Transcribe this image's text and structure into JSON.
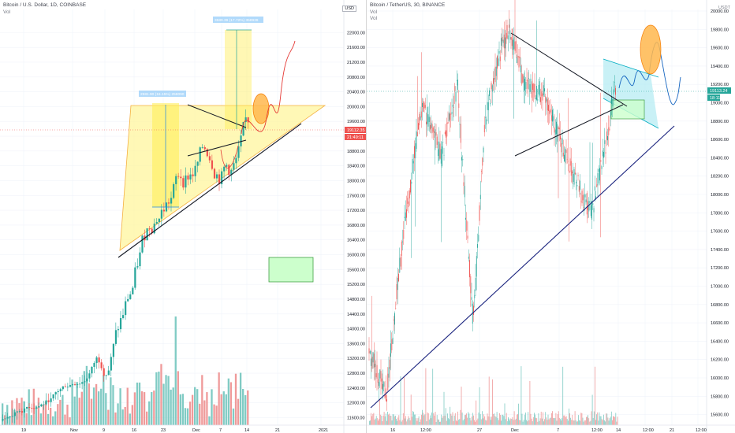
{
  "left_chart": {
    "title": "Bitcoin / U.S. Dollar, 1D, COINBASE",
    "volume_label": "Vol",
    "currency_label": "USD",
    "y_ticks": [
      "22000.00",
      "21600.00",
      "21200.00",
      "20800.00",
      "20400.00",
      "20000.00",
      "19600.00",
      "19200.00",
      "18800.00",
      "18400.00",
      "18000.00",
      "17600.00",
      "17200.00",
      "16800.00",
      "16400.00",
      "16000.00",
      "15600.00",
      "15200.00",
      "14800.00",
      "14400.00",
      "14000.00",
      "13600.00",
      "13200.00",
      "12800.00",
      "12400.00",
      "12000.00",
      "11600.00"
    ],
    "x_ticks": [
      "19",
      "Nov",
      "9",
      "16",
      "23",
      "Dec",
      "7",
      "14",
      "21",
      "2021"
    ],
    "price_tag": "19112.35",
    "countdown_tag": "21:49:11",
    "measure_label_1": "2581.90 (16.15%) 258090",
    "measure_label_2": "3589.39 (17.72%) 358939"
  },
  "right_chart": {
    "title": "Bitcoin / TetherUS, 30, BINANCE",
    "volume_label_1": "Vol",
    "volume_label_2": "Vol",
    "currency_label": "USDT",
    "y_ticks": [
      "20000.00",
      "19800.00",
      "19600.00",
      "19400.00",
      "19200.00",
      "19000.00",
      "18800.00",
      "18600.00",
      "18400.00",
      "18200.00",
      "18000.00",
      "17800.00",
      "17600.00",
      "17400.00",
      "17200.00",
      "17000.00",
      "16800.00",
      "16600.00",
      "16400.00",
      "16200.00",
      "16000.00",
      "15800.00",
      "15600.00"
    ],
    "x_ticks": [
      "16",
      "12:00",
      "27",
      "Dec",
      "7",
      "12:00",
      "14",
      "12:00",
      "21",
      "12:00"
    ],
    "price_tag": "19113.24",
    "countdown_tag": "18:11"
  },
  "colors": {
    "up": "#26a69a",
    "down": "#ef5350",
    "vol_up": "#80cbc4",
    "vol_down": "#ef9a9a",
    "triangle": "#fff59d",
    "trend": "#131722"
  }
}
